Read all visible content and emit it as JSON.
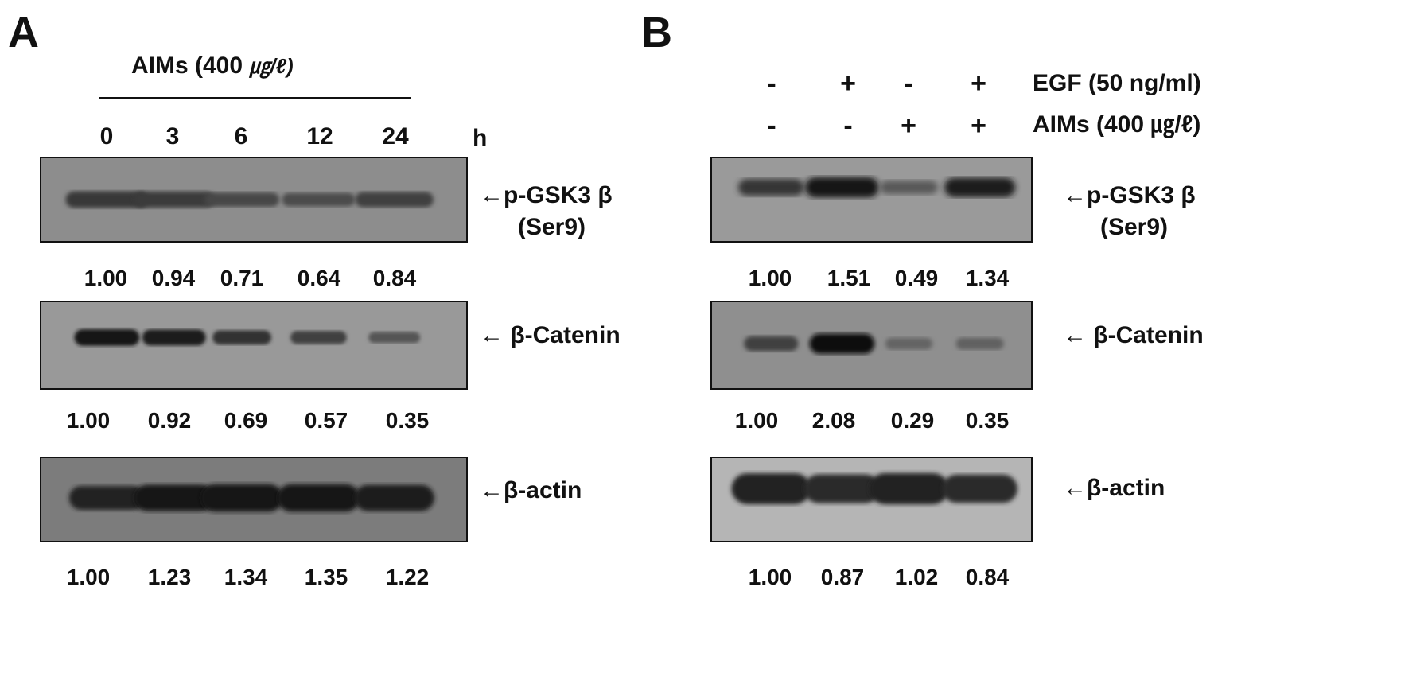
{
  "panelA": {
    "letter": "A",
    "treatment": "AIMs (400 ㎍/ℓ)",
    "treatment_main": "AIMs (400 ",
    "treatment_unit": "㎍/ℓ)",
    "time_points": [
      "0",
      "3",
      "6",
      "12",
      "24"
    ],
    "time_unit": "h",
    "blots": [
      {
        "label_line1": "←p-GSK3 β",
        "label_line2": "(Ser9)",
        "values": [
          "1.00",
          "0.94",
          "0.71",
          "0.64",
          "0.84"
        ],
        "intensity": [
          1.0,
          0.94,
          0.71,
          0.64,
          0.84
        ]
      },
      {
        "label_line1": "← β-Catenin",
        "label_line2": "",
        "values": [
          "1.00",
          "0.92",
          "0.69",
          "0.57",
          "0.35"
        ],
        "intensity": [
          1.0,
          0.92,
          0.69,
          0.57,
          0.35
        ]
      },
      {
        "label_line1": "←β-actin",
        "label_line2": "",
        "values": [
          "1.00",
          "1.23",
          "1.34",
          "1.35",
          "1.22"
        ],
        "intensity": [
          1.0,
          1.23,
          1.34,
          1.35,
          1.22
        ]
      }
    ]
  },
  "panelB": {
    "letter": "B",
    "conditions": [
      {
        "label": "EGF  (50 ng/ml)",
        "signs": [
          "-",
          "+",
          "-",
          "+"
        ]
      },
      {
        "label": "AIMs (400 ㎍/ℓ)",
        "signs": [
          "-",
          "-",
          "+",
          "+"
        ]
      }
    ],
    "blots": [
      {
        "label_line1": "←p-GSK3 β",
        "label_line2": "(Ser9)",
        "values": [
          "1.00",
          "1.51",
          "0.49",
          "1.34"
        ],
        "intensity": [
          1.0,
          1.51,
          0.49,
          1.34
        ]
      },
      {
        "label_line1": "← β-Catenin",
        "label_line2": "",
        "values": [
          "1.00",
          "2.08",
          "0.29",
          "0.35"
        ],
        "intensity": [
          1.0,
          2.08,
          0.29,
          0.35
        ]
      },
      {
        "label_line1": "←β-actin",
        "label_line2": "",
        "values": [
          "1.00",
          "0.87",
          "1.02",
          "0.84"
        ],
        "intensity": [
          1.0,
          0.87,
          1.02,
          0.84
        ]
      }
    ]
  }
}
